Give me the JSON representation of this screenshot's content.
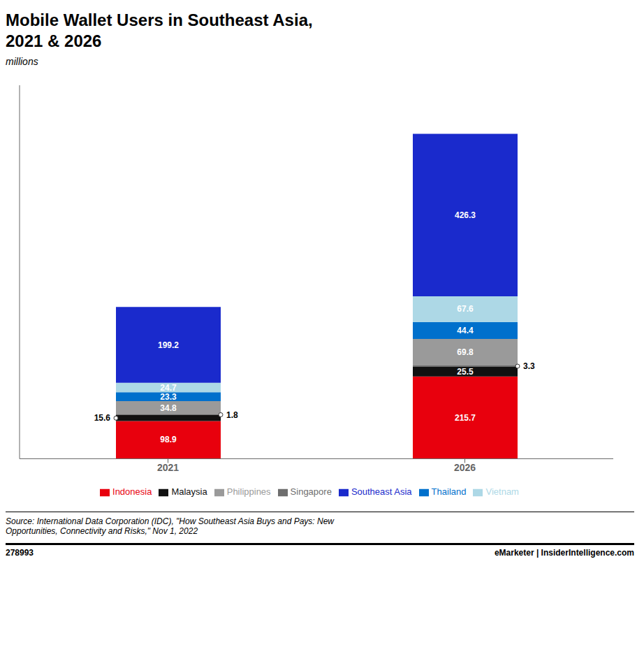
{
  "chart_data": {
    "type": "bar",
    "title": "Mobile Wallet Users in Southeast Asia,\n2021 & 2026",
    "subtitle": "millions",
    "categories": [
      "2021",
      "2026"
    ],
    "series": [
      {
        "name": "Indonesia",
        "color": "#e8000d",
        "values": [
          98.9,
          215.7
        ]
      },
      {
        "name": "Malaysia",
        "color": "#111111",
        "values": [
          15.6,
          25.5
        ]
      },
      {
        "name": "Singapore",
        "color": "#6e6e6e",
        "values": [
          1.8,
          3.3
        ]
      },
      {
        "name": "Philippines",
        "color": "#9a9a9a",
        "values": [
          34.8,
          69.8
        ]
      },
      {
        "name": "Thailand",
        "color": "#0070cc",
        "values": [
          23.3,
          44.4
        ]
      },
      {
        "name": "Vietnam",
        "color": "#add8e6",
        "values": [
          24.7,
          67.6
        ]
      },
      {
        "name": "Southeast Asia",
        "color": "#1a2acc",
        "values": [
          199.2,
          426.3
        ]
      }
    ],
    "stacked": true,
    "data_labels": true,
    "ylim": [
      0,
      980
    ],
    "tick_labels": "x",
    "legend": "bottom",
    "annotations": [
      "Source: International Data Corporation (IDC), \"How Southeast Asia Buys and Pays: New\nOpportunities, Connectivity and Risks,\" Nov 1, 2022",
      "278993",
      "eMarketer  |  InsiderIntelligence.com"
    ]
  }
}
